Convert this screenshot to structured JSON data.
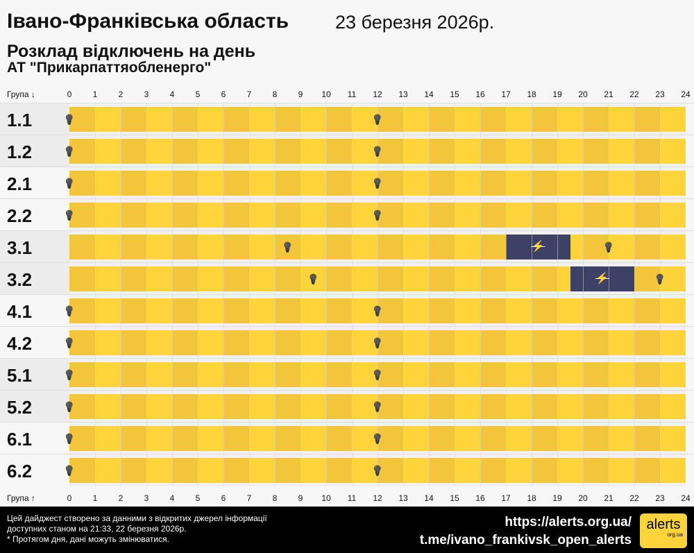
{
  "header": {
    "title": "Івано-Франківська область",
    "date": "23 березня 2026р.",
    "subtitle": "Розклад відключень на день",
    "company": "АТ \"Прикарпаттяобленерго\""
  },
  "axis": {
    "top_label": "Група ↓",
    "bottom_label": "Група ↑",
    "hours": [
      "0",
      "1",
      "2",
      "3",
      "4",
      "5",
      "6",
      "7",
      "8",
      "9",
      "10",
      "11",
      "12",
      "13",
      "14",
      "15",
      "16",
      "17",
      "18",
      "19",
      "20",
      "21",
      "22",
      "23",
      "24"
    ]
  },
  "colors": {
    "power_on": "#ffd43b",
    "power_on_alt": "#f2c53a",
    "outage": "#3e4166",
    "outage_alt": "#45486e"
  },
  "groups": [
    {
      "name": "1.1",
      "outages": [],
      "icons": [
        0,
        12
      ]
    },
    {
      "name": "1.2",
      "outages": [],
      "icons": [
        0,
        12
      ]
    },
    {
      "name": "2.1",
      "outages": [],
      "icons": [
        0,
        12
      ]
    },
    {
      "name": "2.2",
      "outages": [],
      "icons": [
        0,
        12
      ]
    },
    {
      "name": "3.1",
      "outages": [
        [
          17,
          19.5
        ]
      ],
      "icons": [
        8.5,
        21
      ]
    },
    {
      "name": "3.2",
      "outages": [
        [
          19.5,
          22
        ]
      ],
      "icons": [
        9.5,
        23
      ]
    },
    {
      "name": "4.1",
      "outages": [],
      "icons": [
        0,
        12
      ]
    },
    {
      "name": "4.2",
      "outages": [],
      "icons": [
        0,
        12
      ]
    },
    {
      "name": "5.1",
      "outages": [],
      "icons": [
        0,
        12
      ]
    },
    {
      "name": "5.2",
      "outages": [],
      "icons": [
        0,
        12
      ]
    },
    {
      "name": "6.1",
      "outages": [],
      "icons": [
        0,
        12
      ]
    },
    {
      "name": "6.2",
      "outages": [],
      "icons": [
        0,
        12
      ]
    }
  ],
  "footer": {
    "note_line1": "Цей дайджест створено за данними з відкритих джерел інформації",
    "note_line2": "доступних станом на 21:33, 22 березня 2026р.",
    "note_line3": "* Протягом дня, дані можуть змінюватися.",
    "link1": "https://alerts.org.ua/",
    "link2": "t.me/ivano_frankivsk_open_alerts",
    "logo_text": "alerts",
    "logo_sub": "org.ua"
  }
}
